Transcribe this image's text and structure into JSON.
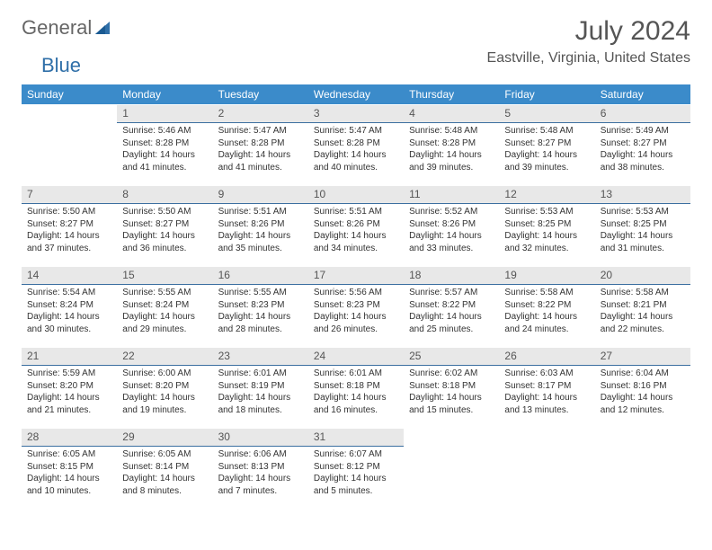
{
  "brand": {
    "part1": "General",
    "part2": "Blue"
  },
  "title": "July 2024",
  "location": "Eastville, Virginia, United States",
  "colors": {
    "header_bg": "#3b8bca",
    "header_text": "#ffffff",
    "daynum_bg": "#e8e8e8",
    "daynum_border": "#3b6fa0",
    "text": "#333333",
    "title_text": "#555555"
  },
  "typography": {
    "title_fontsize": 30,
    "location_fontsize": 16,
    "dayheader_fontsize": 12,
    "body_fontsize": 10
  },
  "day_headers": [
    "Sunday",
    "Monday",
    "Tuesday",
    "Wednesday",
    "Thursday",
    "Friday",
    "Saturday"
  ],
  "weeks": [
    [
      null,
      {
        "n": "1",
        "sr": "Sunrise: 5:46 AM",
        "ss": "Sunset: 8:28 PM",
        "d1": "Daylight: 14 hours",
        "d2": "and 41 minutes."
      },
      {
        "n": "2",
        "sr": "Sunrise: 5:47 AM",
        "ss": "Sunset: 8:28 PM",
        "d1": "Daylight: 14 hours",
        "d2": "and 41 minutes."
      },
      {
        "n": "3",
        "sr": "Sunrise: 5:47 AM",
        "ss": "Sunset: 8:28 PM",
        "d1": "Daylight: 14 hours",
        "d2": "and 40 minutes."
      },
      {
        "n": "4",
        "sr": "Sunrise: 5:48 AM",
        "ss": "Sunset: 8:28 PM",
        "d1": "Daylight: 14 hours",
        "d2": "and 39 minutes."
      },
      {
        "n": "5",
        "sr": "Sunrise: 5:48 AM",
        "ss": "Sunset: 8:27 PM",
        "d1": "Daylight: 14 hours",
        "d2": "and 39 minutes."
      },
      {
        "n": "6",
        "sr": "Sunrise: 5:49 AM",
        "ss": "Sunset: 8:27 PM",
        "d1": "Daylight: 14 hours",
        "d2": "and 38 minutes."
      }
    ],
    [
      {
        "n": "7",
        "sr": "Sunrise: 5:50 AM",
        "ss": "Sunset: 8:27 PM",
        "d1": "Daylight: 14 hours",
        "d2": "and 37 minutes."
      },
      {
        "n": "8",
        "sr": "Sunrise: 5:50 AM",
        "ss": "Sunset: 8:27 PM",
        "d1": "Daylight: 14 hours",
        "d2": "and 36 minutes."
      },
      {
        "n": "9",
        "sr": "Sunrise: 5:51 AM",
        "ss": "Sunset: 8:26 PM",
        "d1": "Daylight: 14 hours",
        "d2": "and 35 minutes."
      },
      {
        "n": "10",
        "sr": "Sunrise: 5:51 AM",
        "ss": "Sunset: 8:26 PM",
        "d1": "Daylight: 14 hours",
        "d2": "and 34 minutes."
      },
      {
        "n": "11",
        "sr": "Sunrise: 5:52 AM",
        "ss": "Sunset: 8:26 PM",
        "d1": "Daylight: 14 hours",
        "d2": "and 33 minutes."
      },
      {
        "n": "12",
        "sr": "Sunrise: 5:53 AM",
        "ss": "Sunset: 8:25 PM",
        "d1": "Daylight: 14 hours",
        "d2": "and 32 minutes."
      },
      {
        "n": "13",
        "sr": "Sunrise: 5:53 AM",
        "ss": "Sunset: 8:25 PM",
        "d1": "Daylight: 14 hours",
        "d2": "and 31 minutes."
      }
    ],
    [
      {
        "n": "14",
        "sr": "Sunrise: 5:54 AM",
        "ss": "Sunset: 8:24 PM",
        "d1": "Daylight: 14 hours",
        "d2": "and 30 minutes."
      },
      {
        "n": "15",
        "sr": "Sunrise: 5:55 AM",
        "ss": "Sunset: 8:24 PM",
        "d1": "Daylight: 14 hours",
        "d2": "and 29 minutes."
      },
      {
        "n": "16",
        "sr": "Sunrise: 5:55 AM",
        "ss": "Sunset: 8:23 PM",
        "d1": "Daylight: 14 hours",
        "d2": "and 28 minutes."
      },
      {
        "n": "17",
        "sr": "Sunrise: 5:56 AM",
        "ss": "Sunset: 8:23 PM",
        "d1": "Daylight: 14 hours",
        "d2": "and 26 minutes."
      },
      {
        "n": "18",
        "sr": "Sunrise: 5:57 AM",
        "ss": "Sunset: 8:22 PM",
        "d1": "Daylight: 14 hours",
        "d2": "and 25 minutes."
      },
      {
        "n": "19",
        "sr": "Sunrise: 5:58 AM",
        "ss": "Sunset: 8:22 PM",
        "d1": "Daylight: 14 hours",
        "d2": "and 24 minutes."
      },
      {
        "n": "20",
        "sr": "Sunrise: 5:58 AM",
        "ss": "Sunset: 8:21 PM",
        "d1": "Daylight: 14 hours",
        "d2": "and 22 minutes."
      }
    ],
    [
      {
        "n": "21",
        "sr": "Sunrise: 5:59 AM",
        "ss": "Sunset: 8:20 PM",
        "d1": "Daylight: 14 hours",
        "d2": "and 21 minutes."
      },
      {
        "n": "22",
        "sr": "Sunrise: 6:00 AM",
        "ss": "Sunset: 8:20 PM",
        "d1": "Daylight: 14 hours",
        "d2": "and 19 minutes."
      },
      {
        "n": "23",
        "sr": "Sunrise: 6:01 AM",
        "ss": "Sunset: 8:19 PM",
        "d1": "Daylight: 14 hours",
        "d2": "and 18 minutes."
      },
      {
        "n": "24",
        "sr": "Sunrise: 6:01 AM",
        "ss": "Sunset: 8:18 PM",
        "d1": "Daylight: 14 hours",
        "d2": "and 16 minutes."
      },
      {
        "n": "25",
        "sr": "Sunrise: 6:02 AM",
        "ss": "Sunset: 8:18 PM",
        "d1": "Daylight: 14 hours",
        "d2": "and 15 minutes."
      },
      {
        "n": "26",
        "sr": "Sunrise: 6:03 AM",
        "ss": "Sunset: 8:17 PM",
        "d1": "Daylight: 14 hours",
        "d2": "and 13 minutes."
      },
      {
        "n": "27",
        "sr": "Sunrise: 6:04 AM",
        "ss": "Sunset: 8:16 PM",
        "d1": "Daylight: 14 hours",
        "d2": "and 12 minutes."
      }
    ],
    [
      {
        "n": "28",
        "sr": "Sunrise: 6:05 AM",
        "ss": "Sunset: 8:15 PM",
        "d1": "Daylight: 14 hours",
        "d2": "and 10 minutes."
      },
      {
        "n": "29",
        "sr": "Sunrise: 6:05 AM",
        "ss": "Sunset: 8:14 PM",
        "d1": "Daylight: 14 hours",
        "d2": "and 8 minutes."
      },
      {
        "n": "30",
        "sr": "Sunrise: 6:06 AM",
        "ss": "Sunset: 8:13 PM",
        "d1": "Daylight: 14 hours",
        "d2": "and 7 minutes."
      },
      {
        "n": "31",
        "sr": "Sunrise: 6:07 AM",
        "ss": "Sunset: 8:12 PM",
        "d1": "Daylight: 14 hours",
        "d2": "and 5 minutes."
      },
      null,
      null,
      null
    ]
  ]
}
